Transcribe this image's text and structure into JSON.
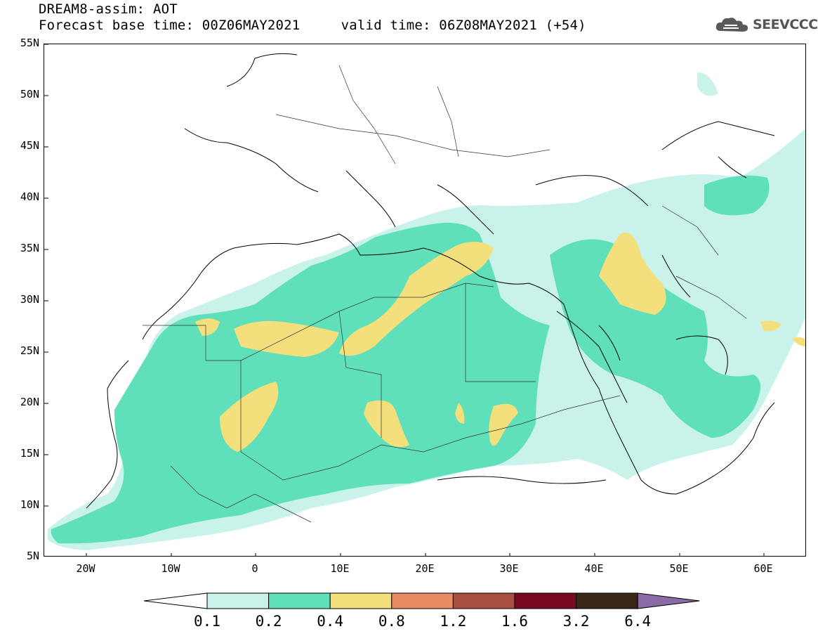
{
  "title": {
    "line1": "DREAM8-assim: AOT",
    "line2": "Forecast base time: 00Z06MAY2021     valid time: 06Z08MAY2021 (+54)"
  },
  "logo": {
    "text": "SEEVCCC",
    "icon": "cloud-logo-icon"
  },
  "axes": {
    "lat_labels": [
      "55N",
      "50N",
      "45N",
      "40N",
      "35N",
      "30N",
      "25N",
      "20N",
      "15N",
      "10N",
      "5N"
    ],
    "lon_labels": [
      "20W",
      "10W",
      "0",
      "10E",
      "20E",
      "30E",
      "40E",
      "50E",
      "60E"
    ]
  },
  "map_data": {
    "variable": "AOT",
    "lat_range": [
      5,
      55
    ],
    "lon_range": [
      -25,
      65
    ],
    "levels": [
      0.1,
      0.2,
      0.4,
      0.8,
      1.2,
      1.6,
      3.2,
      6.4
    ],
    "level_labels": [
      "0.1",
      "0.2",
      "0.4",
      "0.8",
      "1.2",
      "1.6",
      "3.2",
      "6.4"
    ],
    "colors": [
      "#ffffff",
      "#c8f2ea",
      "#5fe0ba",
      "#f3e07c",
      "#e98b65",
      "#a85040",
      "#7a0a22",
      "#3b2617",
      "#8c6aa6"
    ]
  }
}
